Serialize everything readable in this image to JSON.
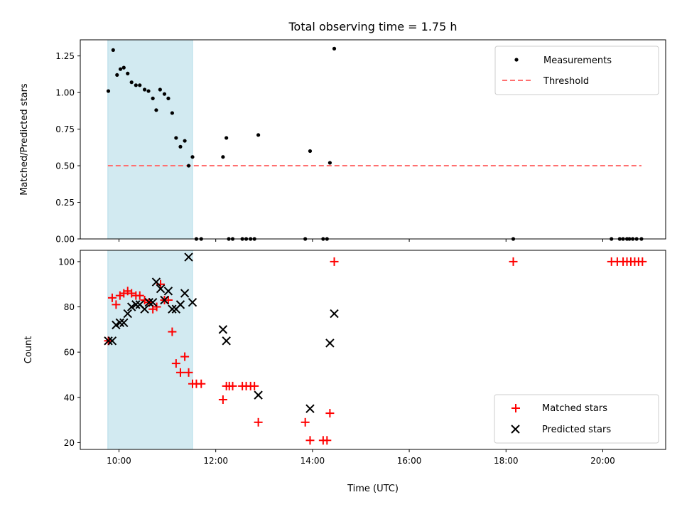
{
  "colors": {
    "shade": "#add8e6",
    "measurement": "#000000",
    "threshold": "#ff7070",
    "matched": "#ff0000",
    "predicted": "#000000"
  },
  "chart_data": [
    {
      "type": "scatter",
      "title": "Total observing time = 1.75 h",
      "xlabel": "",
      "ylabel": "Matched/Predicted stars",
      "x_unit": "hours (UTC)",
      "xlim": [
        9.2,
        21.3
      ],
      "ylim": [
        0,
        1.36
      ],
      "xticks": [
        "10:00",
        "12:00",
        "14:00",
        "16:00",
        "18:00",
        "20:00"
      ],
      "xtick_values": [
        10,
        12,
        14,
        16,
        18,
        20
      ],
      "yticks": [
        "0.00",
        "0.25",
        "0.50",
        "0.75",
        "1.00",
        "1.25"
      ],
      "ytick_values": [
        0,
        0.25,
        0.5,
        0.75,
        1.0,
        1.25
      ],
      "shaded_span": [
        9.77,
        11.52
      ],
      "legend_position": "upper right",
      "legend": [
        "Measurements",
        "Threshold"
      ],
      "threshold": {
        "y": 0.5,
        "x_range": [
          9.77,
          20.8
        ]
      },
      "measurements": [
        [
          9.78,
          1.01
        ],
        [
          9.88,
          1.29
        ],
        [
          9.96,
          1.12
        ],
        [
          10.03,
          1.16
        ],
        [
          10.1,
          1.17
        ],
        [
          10.18,
          1.13
        ],
        [
          10.26,
          1.07
        ],
        [
          10.35,
          1.05
        ],
        [
          10.43,
          1.05
        ],
        [
          10.53,
          1.02
        ],
        [
          10.61,
          1.01
        ],
        [
          10.7,
          0.96
        ],
        [
          10.77,
          0.88
        ],
        [
          10.85,
          1.02
        ],
        [
          10.94,
          0.99
        ],
        [
          11.02,
          0.96
        ],
        [
          11.1,
          0.86
        ],
        [
          11.18,
          0.69
        ],
        [
          11.27,
          0.63
        ],
        [
          11.36,
          0.67
        ],
        [
          11.44,
          0.5
        ],
        [
          11.52,
          0.56
        ],
        [
          11.6,
          0.0
        ],
        [
          11.7,
          0.0
        ],
        [
          12.15,
          0.56
        ],
        [
          12.22,
          0.69
        ],
        [
          12.27,
          0.0
        ],
        [
          12.35,
          0.0
        ],
        [
          12.55,
          0.0
        ],
        [
          12.63,
          0.0
        ],
        [
          12.72,
          0.0
        ],
        [
          12.8,
          0.0
        ],
        [
          12.88,
          0.71
        ],
        [
          13.85,
          0.0
        ],
        [
          13.95,
          0.6
        ],
        [
          14.22,
          0.0
        ],
        [
          14.3,
          0.0
        ],
        [
          14.36,
          0.52
        ],
        [
          14.45,
          1.3
        ],
        [
          18.15,
          0.0
        ],
        [
          20.18,
          0.0
        ],
        [
          20.35,
          0.0
        ],
        [
          20.42,
          0.0
        ],
        [
          20.5,
          0.0
        ],
        [
          20.55,
          0.0
        ],
        [
          20.62,
          0.0
        ],
        [
          20.7,
          0.0
        ],
        [
          20.8,
          0.0
        ]
      ]
    },
    {
      "type": "scatter",
      "title": "",
      "xlabel": "Time (UTC)",
      "ylabel": "Count",
      "x_unit": "hours (UTC)",
      "xlim": [
        9.2,
        21.3
      ],
      "ylim": [
        17,
        105
      ],
      "xticks": [
        "10:00",
        "12:00",
        "14:00",
        "16:00",
        "18:00",
        "20:00"
      ],
      "xtick_values": [
        10,
        12,
        14,
        16,
        18,
        20
      ],
      "yticks": [
        "20",
        "40",
        "60",
        "80",
        "100"
      ],
      "ytick_values": [
        20,
        40,
        60,
        80,
        100
      ],
      "shaded_span": [
        9.77,
        11.52
      ],
      "legend_position": "lower right",
      "legend": [
        "Matched stars",
        "Predicted stars"
      ],
      "series": [
        {
          "name": "Matched stars",
          "marker": "plus",
          "points": [
            [
              9.78,
              65
            ],
            [
              9.86,
              84
            ],
            [
              9.94,
              81
            ],
            [
              10.02,
              85
            ],
            [
              10.1,
              86
            ],
            [
              10.18,
              87
            ],
            [
              10.26,
              86
            ],
            [
              10.35,
              85
            ],
            [
              10.43,
              85
            ],
            [
              10.53,
              83
            ],
            [
              10.62,
              82
            ],
            [
              10.7,
              79
            ],
            [
              10.78,
              80
            ],
            [
              10.86,
              90
            ],
            [
              10.94,
              83
            ],
            [
              11.02,
              83
            ],
            [
              11.1,
              69
            ],
            [
              11.18,
              55
            ],
            [
              11.27,
              51
            ],
            [
              11.36,
              58
            ],
            [
              11.44,
              51
            ],
            [
              11.52,
              46
            ],
            [
              11.6,
              46
            ],
            [
              11.7,
              46
            ],
            [
              12.15,
              39
            ],
            [
              12.22,
              45
            ],
            [
              12.28,
              45
            ],
            [
              12.35,
              45
            ],
            [
              12.55,
              45
            ],
            [
              12.63,
              45
            ],
            [
              12.72,
              45
            ],
            [
              12.8,
              45
            ],
            [
              12.88,
              29
            ],
            [
              13.85,
              29
            ],
            [
              13.95,
              21
            ],
            [
              14.22,
              21
            ],
            [
              14.3,
              21
            ],
            [
              14.36,
              33
            ],
            [
              14.45,
              100
            ],
            [
              18.15,
              100
            ],
            [
              20.18,
              100
            ],
            [
              20.3,
              100
            ],
            [
              20.42,
              100
            ],
            [
              20.5,
              100
            ],
            [
              20.58,
              100
            ],
            [
              20.66,
              100
            ],
            [
              20.74,
              100
            ],
            [
              20.82,
              100
            ]
          ]
        },
        {
          "name": "Predicted stars",
          "marker": "x",
          "points": [
            [
              9.78,
              65
            ],
            [
              9.86,
              65
            ],
            [
              9.94,
              72
            ],
            [
              10.02,
              73
            ],
            [
              10.1,
              73
            ],
            [
              10.18,
              77
            ],
            [
              10.26,
              80
            ],
            [
              10.35,
              81
            ],
            [
              10.43,
              81
            ],
            [
              10.53,
              79
            ],
            [
              10.62,
              82
            ],
            [
              10.7,
              82
            ],
            [
              10.77,
              91
            ],
            [
              10.86,
              88
            ],
            [
              10.94,
              83
            ],
            [
              11.02,
              87
            ],
            [
              11.1,
              79
            ],
            [
              11.18,
              79
            ],
            [
              11.27,
              81
            ],
            [
              11.36,
              86
            ],
            [
              11.44,
              102
            ],
            [
              11.52,
              82
            ],
            [
              12.15,
              70
            ],
            [
              12.22,
              65
            ],
            [
              12.88,
              41
            ],
            [
              13.95,
              35
            ],
            [
              14.36,
              64
            ],
            [
              14.45,
              77
            ]
          ]
        }
      ]
    }
  ]
}
